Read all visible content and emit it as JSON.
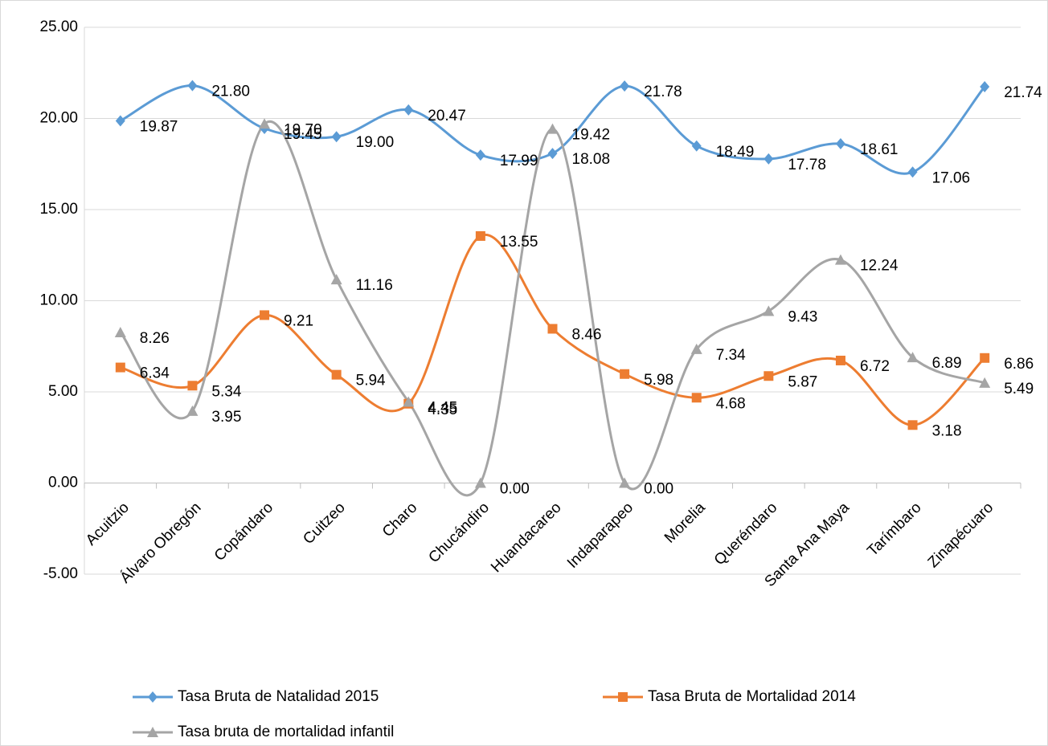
{
  "chart_data": {
    "type": "line",
    "categories": [
      "Acuitzio",
      "Álvaro Obregón",
      "Copándaro",
      "Cuitzeo",
      "Charo",
      "Chucándiro",
      "Huandacareo",
      "Indaparapeo",
      "Morelia",
      "Queréndaro",
      "Santa Ana Maya",
      "Tarímbaro",
      "Zinapécuaro"
    ],
    "series": [
      {
        "name": "Tasa Bruta de Natalidad 2015",
        "color": "#5b9bd5",
        "marker": "diamond",
        "values": [
          19.87,
          21.8,
          19.45,
          19.0,
          20.47,
          17.99,
          18.08,
          21.78,
          18.49,
          17.78,
          18.61,
          17.06,
          21.74
        ],
        "value_labels": [
          "19.87",
          "21.80",
          "19.45",
          "19.00",
          "20.47",
          "17.99",
          "18.08",
          "21.78",
          "18.49",
          "17.78",
          "18.61",
          "17.06",
          "21.74"
        ]
      },
      {
        "name": "Tasa Bruta de Mortalidad 2014",
        "color": "#ed7d31",
        "marker": "square",
        "values": [
          6.34,
          5.34,
          9.21,
          5.94,
          4.35,
          13.55,
          8.46,
          5.98,
          4.68,
          5.87,
          6.72,
          3.18,
          6.86
        ],
        "value_labels": [
          "6.34",
          "5.34",
          "9.21",
          "5.94",
          "4.35",
          "13.55",
          "8.46",
          "5.98",
          "4.68",
          "5.87",
          "6.72",
          "3.18",
          "6.86"
        ]
      },
      {
        "name": "Tasa bruta de mortalidad infantil",
        "color": "#a5a5a5",
        "marker": "triangle",
        "values": [
          8.26,
          3.95,
          19.7,
          11.16,
          4.45,
          0.0,
          19.42,
          0.0,
          7.34,
          9.43,
          12.24,
          6.89,
          5.49
        ],
        "value_labels": [
          "8.26",
          "3.95",
          "19.70",
          "11.16",
          "4.45",
          "0.00",
          "19.42",
          "0.00",
          "7.34",
          "9.43",
          "12.24",
          "6.89",
          "5.49"
        ]
      }
    ],
    "ylim": [
      -5,
      25
    ],
    "yticks": [
      {
        "value": -5,
        "label": "-5.00"
      },
      {
        "value": 0,
        "label": "0.00"
      },
      {
        "value": 5,
        "label": "5.00"
      },
      {
        "value": 10,
        "label": "10.00"
      },
      {
        "value": 15,
        "label": "15.00"
      },
      {
        "value": 20,
        "label": "20.00"
      },
      {
        "value": 25,
        "label": "25.00"
      }
    ],
    "grid": true,
    "smooth": true,
    "legend": "bottom"
  }
}
